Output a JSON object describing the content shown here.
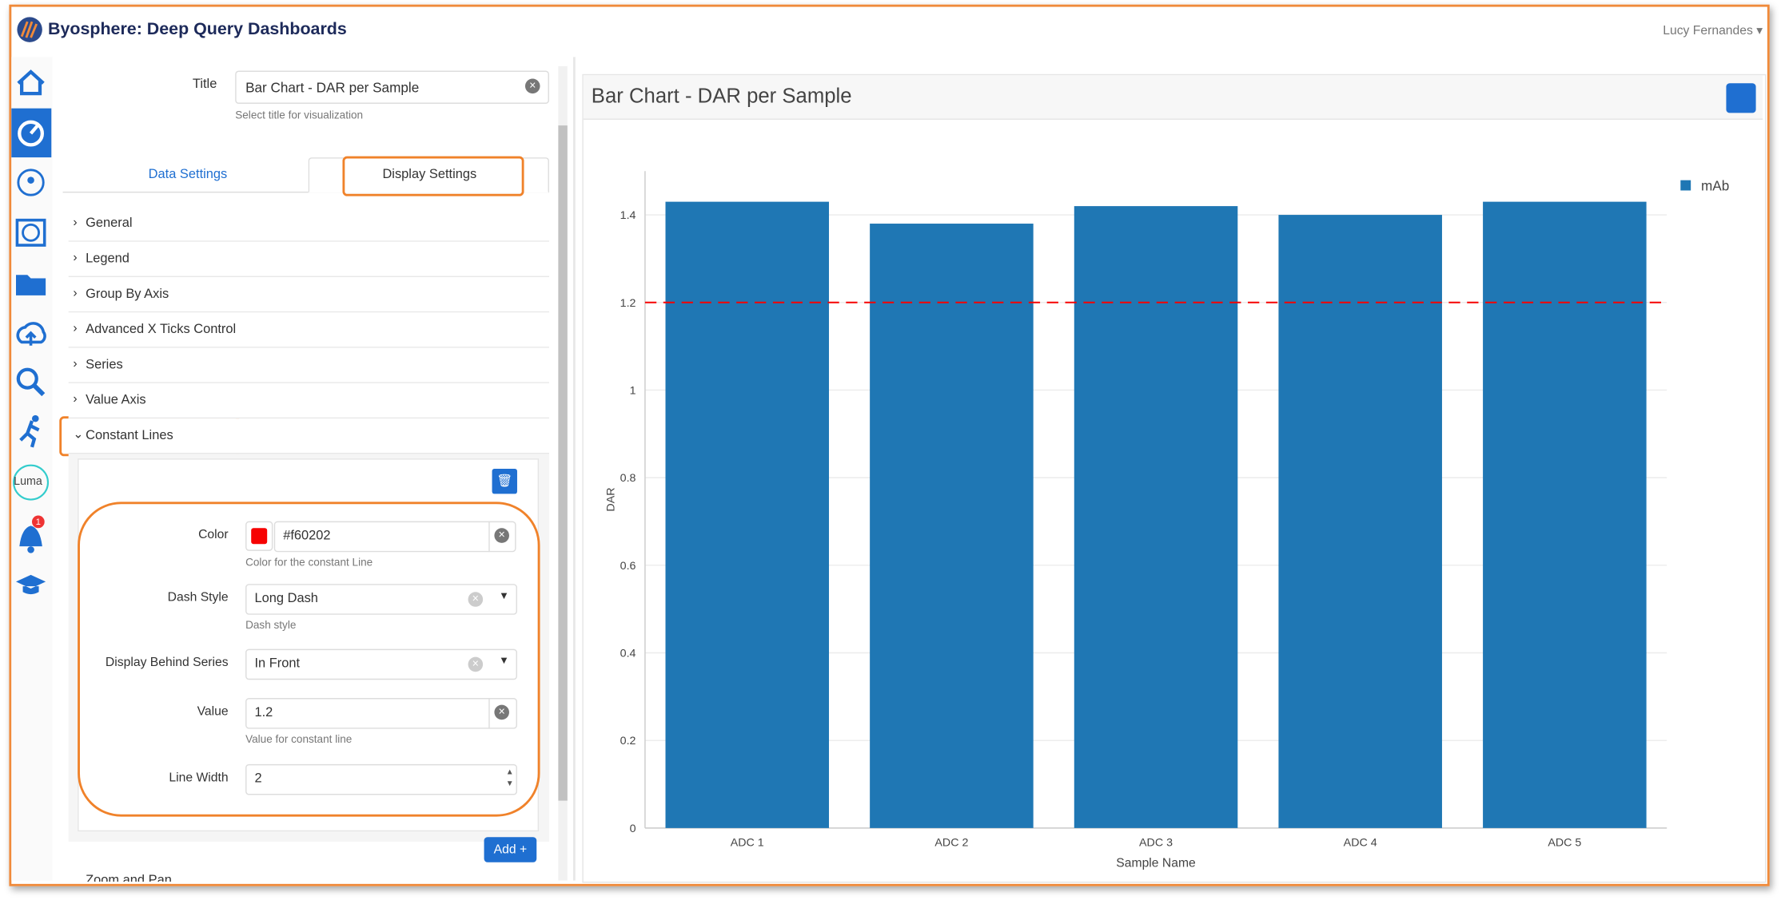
{
  "header": {
    "title": "Byosphere: Deep Query Dashboards",
    "user": "Lucy Fernandes"
  },
  "sidebar": {
    "notification_count": "1",
    "luma": "Luma"
  },
  "settings": {
    "title_label": "Title",
    "title_value": "Bar Chart - DAR per Sample",
    "title_help": "Select title for visualization",
    "tabs": [
      "Data Settings",
      "Display Settings"
    ],
    "sections": [
      "General",
      "Legend",
      "Group By Axis",
      "Advanced X Ticks Control",
      "Series",
      "Value Axis",
      "Constant Lines"
    ],
    "constant_line": {
      "fields": [
        {
          "label": "Color",
          "value": "#f60202",
          "help": "Color for the constant Line"
        },
        {
          "label": "Dash Style",
          "value": "Long Dash",
          "help": "Dash style"
        },
        {
          "label": "Display Behind Series",
          "value": "In Front"
        },
        {
          "label": "Value",
          "value": "1.2",
          "help": "Value for constant line"
        },
        {
          "label": "Line Width",
          "value": "2"
        }
      ]
    },
    "add_button": "Add",
    "next_section": "Zoom and Pan"
  },
  "chart_data": {
    "type": "bar",
    "title": "Bar Chart - DAR per Sample",
    "categories": [
      "ADC 1",
      "ADC 2",
      "ADC 3",
      "ADC 4",
      "ADC 5"
    ],
    "series": [
      {
        "name": "mAb",
        "color": "#1f77b4",
        "values": [
          1.43,
          1.38,
          1.42,
          1.4,
          1.43
        ]
      }
    ],
    "ylim": [
      0,
      1.5
    ],
    "yticks": [
      0,
      0.2,
      0.4,
      0.6,
      0.8,
      1,
      1.2,
      1.4
    ],
    "x_label": "Sample Name",
    "y_label": "DAR",
    "grid": true,
    "legend": "top-right",
    "constant_line": {
      "value": 1.2,
      "color": "#f60202",
      "width": 2
    }
  }
}
